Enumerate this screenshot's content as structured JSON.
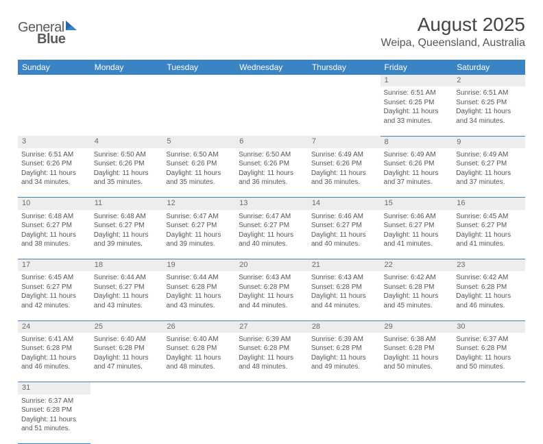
{
  "logo": {
    "text1": "General",
    "text2": "Blue"
  },
  "title": "August 2025",
  "location": "Weipa, Queensland, Australia",
  "colors": {
    "header_bg": "#3b84c4",
    "header_text": "#ffffff",
    "daynum_bg": "#ededed",
    "border": "#3b84c4",
    "body_text": "#555555"
  },
  "day_headers": [
    "Sunday",
    "Monday",
    "Tuesday",
    "Wednesday",
    "Thursday",
    "Friday",
    "Saturday"
  ],
  "weeks": [
    [
      null,
      null,
      null,
      null,
      null,
      {
        "n": "1",
        "sr": "6:51 AM",
        "ss": "6:25 PM",
        "dl": "11 hours and 33 minutes."
      },
      {
        "n": "2",
        "sr": "6:51 AM",
        "ss": "6:25 PM",
        "dl": "11 hours and 34 minutes."
      }
    ],
    [
      {
        "n": "3",
        "sr": "6:51 AM",
        "ss": "6:26 PM",
        "dl": "11 hours and 34 minutes."
      },
      {
        "n": "4",
        "sr": "6:50 AM",
        "ss": "6:26 PM",
        "dl": "11 hours and 35 minutes."
      },
      {
        "n": "5",
        "sr": "6:50 AM",
        "ss": "6:26 PM",
        "dl": "11 hours and 35 minutes."
      },
      {
        "n": "6",
        "sr": "6:50 AM",
        "ss": "6:26 PM",
        "dl": "11 hours and 36 minutes."
      },
      {
        "n": "7",
        "sr": "6:49 AM",
        "ss": "6:26 PM",
        "dl": "11 hours and 36 minutes."
      },
      {
        "n": "8",
        "sr": "6:49 AM",
        "ss": "6:26 PM",
        "dl": "11 hours and 37 minutes."
      },
      {
        "n": "9",
        "sr": "6:49 AM",
        "ss": "6:27 PM",
        "dl": "11 hours and 37 minutes."
      }
    ],
    [
      {
        "n": "10",
        "sr": "6:48 AM",
        "ss": "6:27 PM",
        "dl": "11 hours and 38 minutes."
      },
      {
        "n": "11",
        "sr": "6:48 AM",
        "ss": "6:27 PM",
        "dl": "11 hours and 39 minutes."
      },
      {
        "n": "12",
        "sr": "6:47 AM",
        "ss": "6:27 PM",
        "dl": "11 hours and 39 minutes."
      },
      {
        "n": "13",
        "sr": "6:47 AM",
        "ss": "6:27 PM",
        "dl": "11 hours and 40 minutes."
      },
      {
        "n": "14",
        "sr": "6:46 AM",
        "ss": "6:27 PM",
        "dl": "11 hours and 40 minutes."
      },
      {
        "n": "15",
        "sr": "6:46 AM",
        "ss": "6:27 PM",
        "dl": "11 hours and 41 minutes."
      },
      {
        "n": "16",
        "sr": "6:45 AM",
        "ss": "6:27 PM",
        "dl": "11 hours and 41 minutes."
      }
    ],
    [
      {
        "n": "17",
        "sr": "6:45 AM",
        "ss": "6:27 PM",
        "dl": "11 hours and 42 minutes."
      },
      {
        "n": "18",
        "sr": "6:44 AM",
        "ss": "6:27 PM",
        "dl": "11 hours and 43 minutes."
      },
      {
        "n": "19",
        "sr": "6:44 AM",
        "ss": "6:28 PM",
        "dl": "11 hours and 43 minutes."
      },
      {
        "n": "20",
        "sr": "6:43 AM",
        "ss": "6:28 PM",
        "dl": "11 hours and 44 minutes."
      },
      {
        "n": "21",
        "sr": "6:43 AM",
        "ss": "6:28 PM",
        "dl": "11 hours and 44 minutes."
      },
      {
        "n": "22",
        "sr": "6:42 AM",
        "ss": "6:28 PM",
        "dl": "11 hours and 45 minutes."
      },
      {
        "n": "23",
        "sr": "6:42 AM",
        "ss": "6:28 PM",
        "dl": "11 hours and 46 minutes."
      }
    ],
    [
      {
        "n": "24",
        "sr": "6:41 AM",
        "ss": "6:28 PM",
        "dl": "11 hours and 46 minutes."
      },
      {
        "n": "25",
        "sr": "6:40 AM",
        "ss": "6:28 PM",
        "dl": "11 hours and 47 minutes."
      },
      {
        "n": "26",
        "sr": "6:40 AM",
        "ss": "6:28 PM",
        "dl": "11 hours and 48 minutes."
      },
      {
        "n": "27",
        "sr": "6:39 AM",
        "ss": "6:28 PM",
        "dl": "11 hours and 48 minutes."
      },
      {
        "n": "28",
        "sr": "6:39 AM",
        "ss": "6:28 PM",
        "dl": "11 hours and 49 minutes."
      },
      {
        "n": "29",
        "sr": "6:38 AM",
        "ss": "6:28 PM",
        "dl": "11 hours and 50 minutes."
      },
      {
        "n": "30",
        "sr": "6:37 AM",
        "ss": "6:28 PM",
        "dl": "11 hours and 50 minutes."
      }
    ],
    [
      {
        "n": "31",
        "sr": "6:37 AM",
        "ss": "6:28 PM",
        "dl": "11 hours and 51 minutes."
      },
      null,
      null,
      null,
      null,
      null,
      null
    ]
  ],
  "labels": {
    "sunrise": "Sunrise:",
    "sunset": "Sunset:",
    "daylight": "Daylight:"
  }
}
